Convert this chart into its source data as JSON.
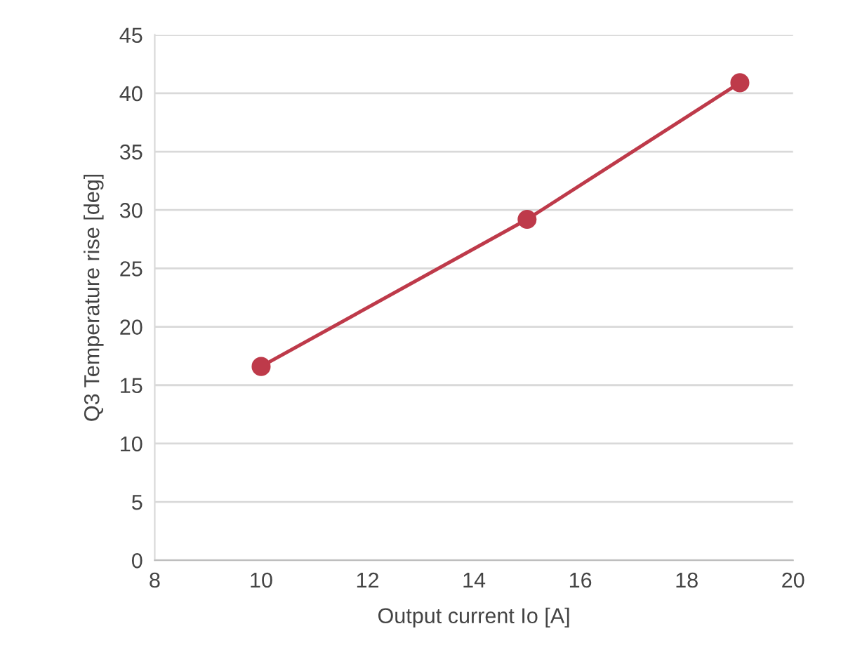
{
  "chart_data": {
    "type": "line",
    "xlabel": "Output current Io [A]",
    "ylabel": "Q3 Temperature rise [deg]",
    "x": [
      10,
      15,
      19
    ],
    "series": [
      {
        "color": "#be3a4a",
        "values": [
          16.6,
          29.2,
          40.9
        ]
      }
    ],
    "xlim": [
      8,
      20
    ],
    "xticks": [
      8,
      10,
      12,
      14,
      16,
      18,
      20
    ],
    "ylim": [
      0,
      45
    ],
    "yticks": [
      0,
      5,
      10,
      15,
      20,
      25,
      30,
      35,
      40,
      45
    ],
    "grid": "y",
    "marker": "circle",
    "line_style": "solid",
    "legend": false
  }
}
